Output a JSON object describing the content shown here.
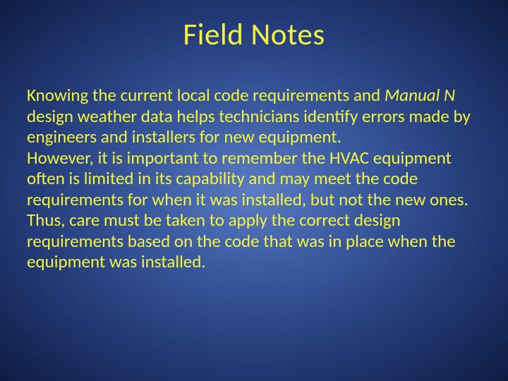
{
  "background": {
    "gradient_inner": "#5b7bc4",
    "gradient_mid": "#3a5aa0",
    "gradient_outer": "#223975",
    "gradient_edge": "#0e1c42"
  },
  "text_color": "#f4f43c",
  "title": {
    "text": "Field Notes",
    "fontsize": 43
  },
  "body": {
    "fontsize": 25,
    "para1_part1": "Knowing the current local code requirements and ",
    "para1_italic": "Manual N",
    "para1_part2": " design weather data helps technicians identify errors made by engineers and installers for new equipment.",
    "para2": "However, it is important to remember the HVAC equipment often is limited in its capability and may meet the code requirements for when it was installed, but not the new ones.  Thus, care must be taken to apply the correct design requirements based on the code that was in place when the equipment was installed."
  }
}
